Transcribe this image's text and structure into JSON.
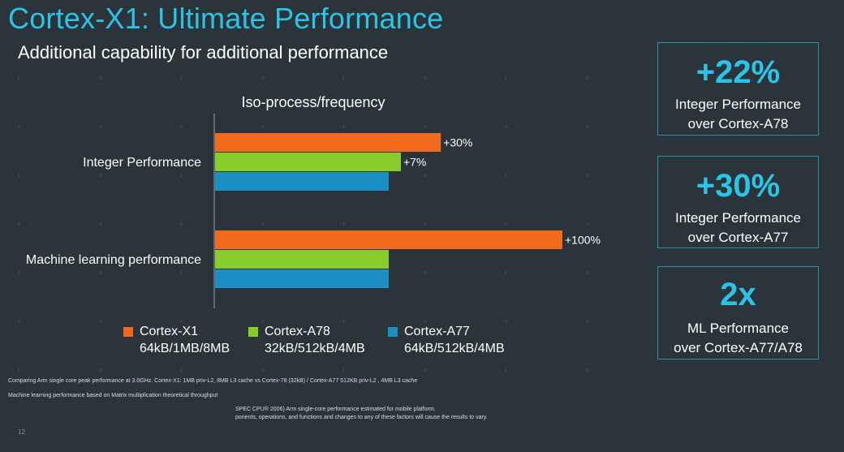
{
  "slide": {
    "title": "Cortex-X1: Ultimate Performance",
    "subtitle": "Additional capability for additional performance",
    "page_number": "12",
    "accent_color": "#2cc4e6"
  },
  "chart_data": {
    "type": "bar",
    "orientation": "horizontal",
    "title": "Iso-process/frequency",
    "categories": [
      "Integer Performance",
      "Machine learning performance"
    ],
    "baseline": "Cortex-A77",
    "series": [
      {
        "name": "Cortex-X1",
        "config": "64kB/1MB/8MB",
        "color": "#f26b1d",
        "values": [
          1.3,
          2.0
        ],
        "labels": [
          "+30%",
          "+100%"
        ]
      },
      {
        "name": "Cortex-A78",
        "config": "32kB/512kB/4MB",
        "color": "#88cc2a",
        "values": [
          1.07,
          1.0
        ],
        "labels": [
          "+7%",
          ""
        ]
      },
      {
        "name": "Cortex-A77",
        "config": "64kB/512kB/4MB",
        "color": "#1b8fc4",
        "values": [
          1.0,
          1.0
        ],
        "labels": [
          "",
          ""
        ]
      }
    ],
    "xlim": [
      0,
      2.0
    ],
    "grid": false,
    "legend": "bottom"
  },
  "kpis": [
    {
      "value": "+22%",
      "line1": "Integer Performance",
      "line2": "over Cortex-A78"
    },
    {
      "value": "+30%",
      "line1": "Integer Performance",
      "line2": "over Cortex-A77"
    },
    {
      "value": "2x",
      "line1": "ML Performance",
      "line2": "over Cortex-A77/A78"
    }
  ],
  "footnotes": {
    "line1": "Comparing  Arm single core peak performance at 3.0GHz. Cortex-X1: 1MB priv-L2, 8MB L3 cache vs Cortex-78 (32kB) / Cortex-A77 512KB priv-L2 , 4MB L3 cache",
    "line2": "Machine learning performance based on Matrix multiplication theoretical throughput",
    "line3": "SPEC CPU® 2006) Arm single-core performance estimated for mobile platform.",
    "line4": "ponents, operations, and functions and changes to any of these factors will cause the results to vary."
  }
}
